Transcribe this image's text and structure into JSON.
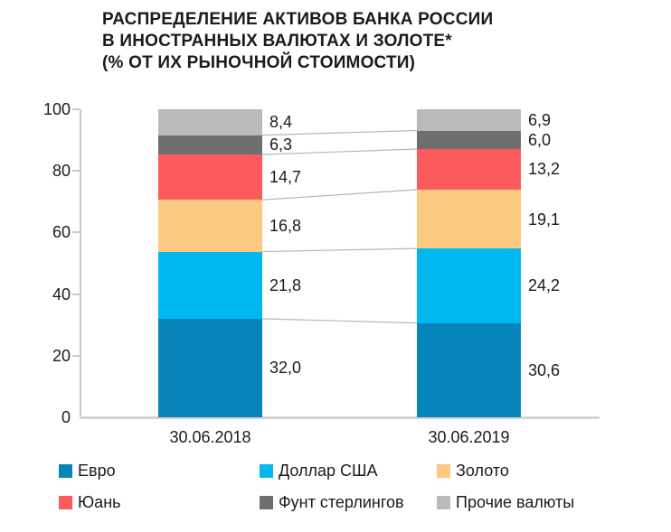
{
  "title": {
    "line1": "РАСПРЕДЕЛЕНИЕ АКТИВОВ БАНКА РОССИИ",
    "line2": "В ИНОСТРАННЫХ ВАЛЮТАХ И ЗОЛОТЕ*",
    "line3": "(% ОТ ИХ РЫНОЧНОЙ СТОИМОСТИ)"
  },
  "chart_data": {
    "type": "bar",
    "stacked": true,
    "unit": "percent",
    "categories": [
      "30.06.2018",
      "30.06.2019"
    ],
    "series": [
      {
        "name": "Евро",
        "color": "#0885b8",
        "values": [
          32.0,
          30.6
        ],
        "labels": [
          "32,0",
          "30,6"
        ]
      },
      {
        "name": "Доллар США",
        "color": "#00b8ef",
        "values": [
          21.8,
          24.2
        ],
        "labels": [
          "21,8",
          "24,2"
        ]
      },
      {
        "name": "Золото",
        "color": "#fcc981",
        "values": [
          16.8,
          19.1
        ],
        "labels": [
          "16,8",
          "19,1"
        ]
      },
      {
        "name": "Юань",
        "color": "#fc5a5d",
        "values": [
          14.7,
          13.2
        ],
        "labels": [
          "14,7",
          "13,2"
        ]
      },
      {
        "name": "Фунт стерлингов",
        "color": "#6e7070",
        "values": [
          6.3,
          6.0
        ],
        "labels": [
          "6,3",
          "6,0"
        ]
      },
      {
        "name": "Прочие валюты",
        "color": "#b8babb",
        "values": [
          8.4,
          6.9
        ],
        "labels": [
          "8,4",
          "6,9"
        ]
      }
    ],
    "y_ticks": [
      0,
      20,
      40,
      60,
      80,
      100
    ],
    "ylim": [
      0,
      100
    ],
    "grid": false,
    "legend_position": "bottom"
  },
  "legend": {
    "rows": [
      [
        "Евро",
        "Доллар США",
        "Золото"
      ],
      [
        "Юань",
        "Фунт стерлингов",
        "Прочие валюты"
      ]
    ]
  },
  "colors": {
    "text": "#1b1b1b",
    "axis": "#c7c9ca",
    "baseline": "#d2d4d5",
    "connector": "#b4b6b7",
    "background": "#ffffff"
  }
}
